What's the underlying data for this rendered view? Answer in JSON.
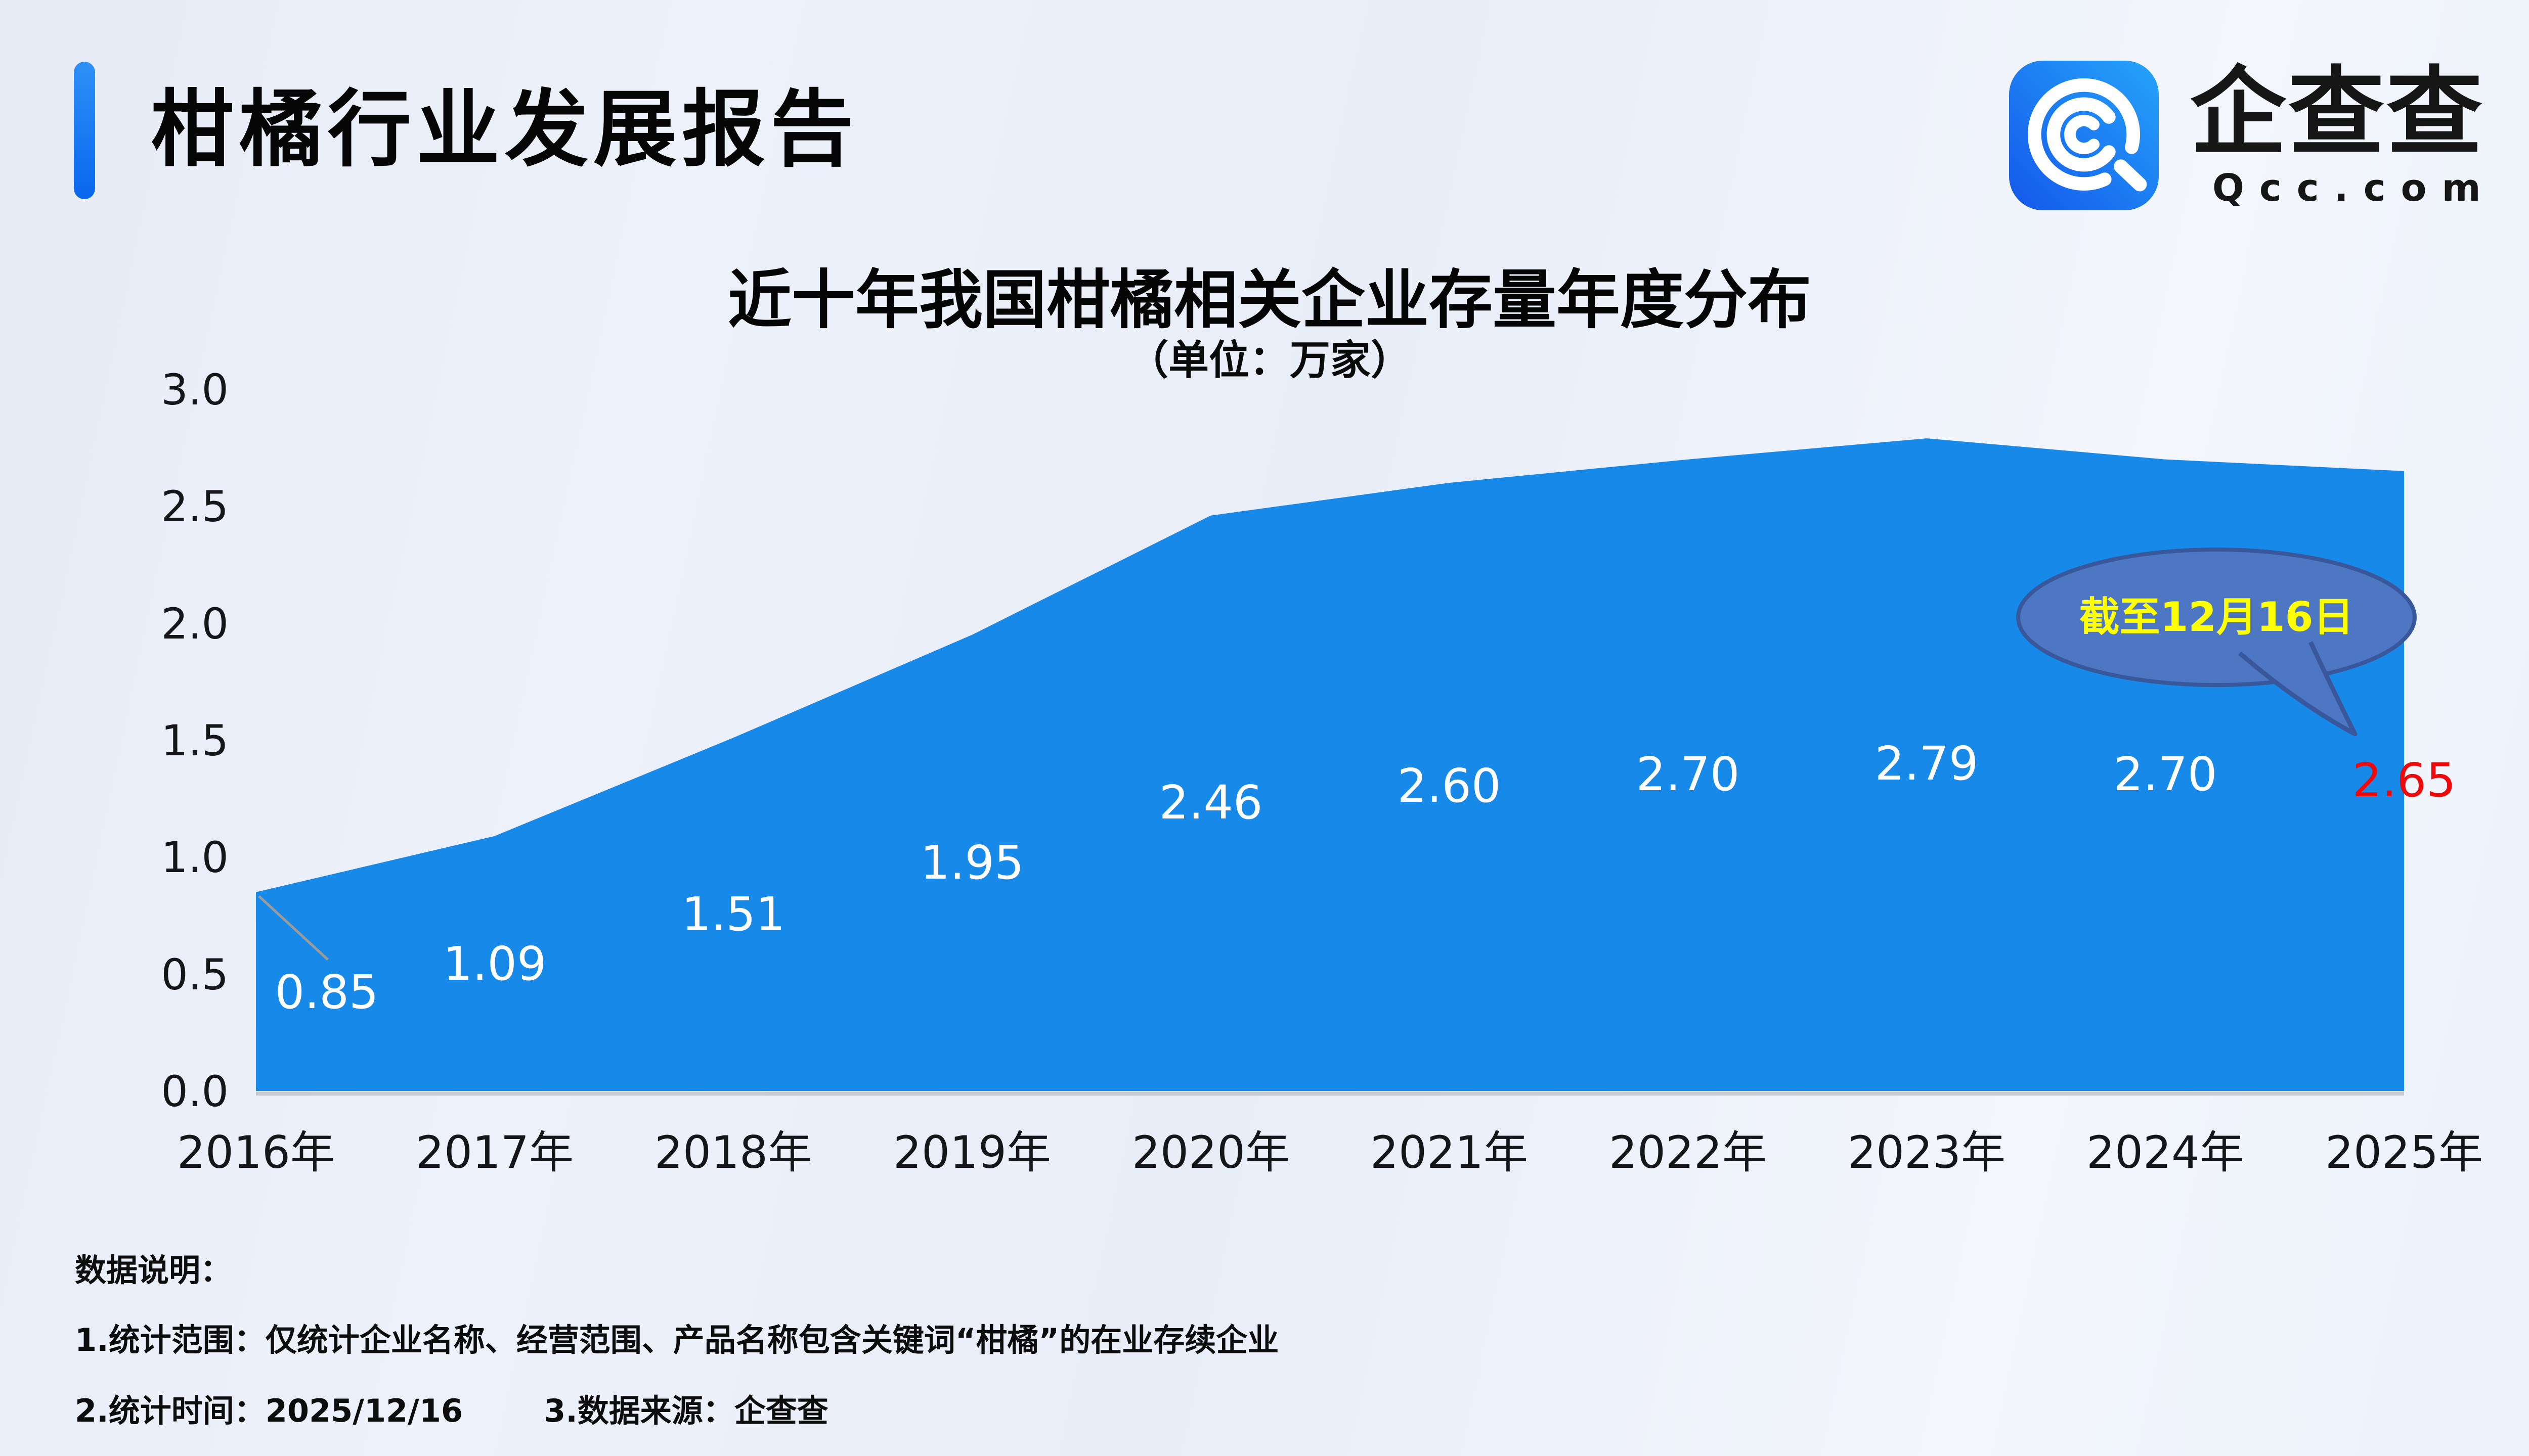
{
  "header": {
    "title": "柑橘行业发展报告",
    "accent_color": "#1377F0"
  },
  "brand": {
    "name": "企查查",
    "domain": "Qcc.com",
    "logo_blue": "#1E8CF5"
  },
  "chart_data": {
    "type": "area",
    "title": "近十年我国柑橘相关企业存量年度分布",
    "subtitle": "（单位：万家）",
    "categories": [
      "2016年",
      "2017年",
      "2018年",
      "2019年",
      "2020年",
      "2021年",
      "2022年",
      "2023年",
      "2024年",
      "2025年"
    ],
    "values": [
      0.85,
      1.09,
      1.51,
      1.95,
      2.46,
      2.6,
      2.7,
      2.79,
      2.7,
      2.65
    ],
    "value_labels": [
      "0.85",
      "1.09",
      "1.51",
      "1.95",
      "2.46",
      "2.60",
      "2.70",
      "2.79",
      "2.70",
      "2.65"
    ],
    "xlabel": "",
    "ylabel": "",
    "ylim": [
      0.0,
      3.0
    ],
    "yticks": [
      0.0,
      0.5,
      1.0,
      1.5,
      2.0,
      2.5,
      3.0
    ],
    "grid": false,
    "legend": false,
    "area_color": "#1789E9",
    "label_color": "#FFFFFF",
    "highlight_label_color": "#EE0A0A",
    "annotation": {
      "text": "截至12月16日",
      "target_category": "2025年",
      "target_value": "2.65",
      "fill": "#4D76C3",
      "border": "#39589B",
      "text_color": "#FFFF00"
    }
  },
  "footer": {
    "label": "数据说明：",
    "note1": "1.统计范围：仅统计企业名称、经营范围、产品名称包含关键词“柑橘”的在业存续企业",
    "note2": "2.统计时间：2025/12/16",
    "note3": "3.数据来源：企查查"
  }
}
